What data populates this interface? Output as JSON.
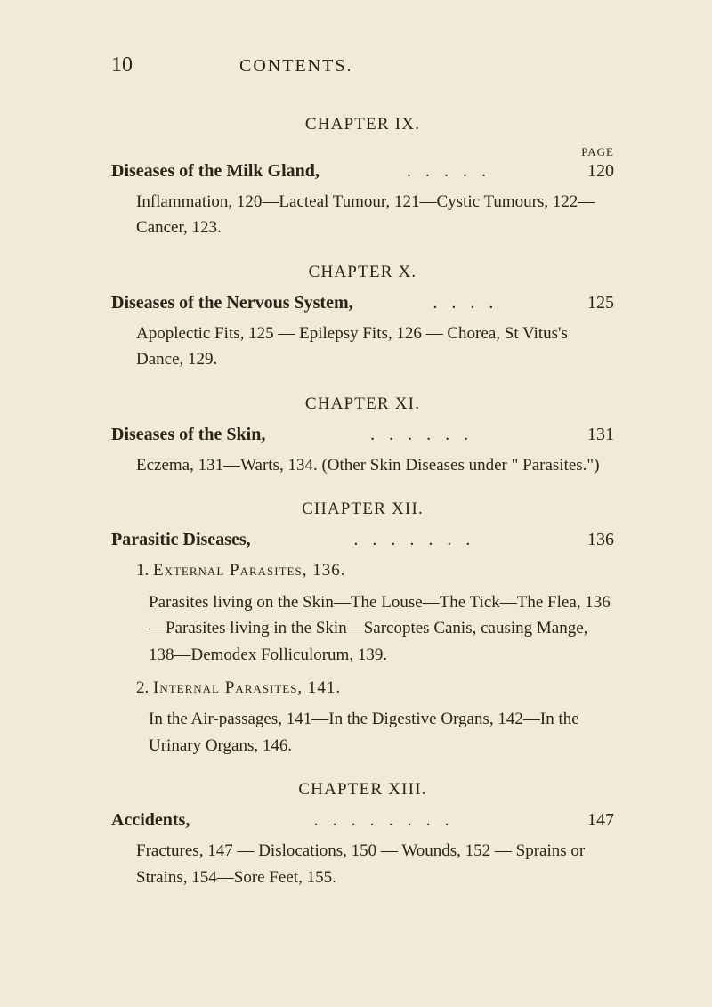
{
  "pageNumber": "10",
  "headerTitle": "CONTENTS.",
  "pageLabel": "PAGE",
  "chapters": {
    "ix": {
      "heading": "CHAPTER IX.",
      "entryTitle": "Diseases of the Milk Gland,",
      "entryPage": "120",
      "description": "Inflammation, 120—Lacteal Tumour, 121—Cystic Tumours, 122—Cancer, 123."
    },
    "x": {
      "heading": "CHAPTER X.",
      "entryTitle": "Diseases of the Nervous System,",
      "entryPage": "125",
      "description": "Apoplectic Fits, 125 — Epilepsy Fits, 126 — Chorea, St Vitus's Dance, 129."
    },
    "xi": {
      "heading": "CHAPTER XI.",
      "entryTitle": "Diseases of the Skin,",
      "entryPage": "131",
      "description": "Eczema, 131—Warts, 134. (Other Skin Diseases under \" Parasites.\")"
    },
    "xii": {
      "heading": "CHAPTER XII.",
      "entryTitle": "Parasitic Diseases,",
      "entryPage": "136",
      "sub1Num": "1.",
      "sub1Title": "External Parasites, 136.",
      "sub1DescA": "Parasites living on the Skin—The Louse—The Tick—The Flea, 136—Parasites living in the Skin—Sarcoptes Canis, causing Mange, 138—Demodex Folliculorum, 139.",
      "sub2Num": "2.",
      "sub2Title": "Internal Parasites, 141.",
      "sub2Desc": "In the Air-passages, 141—In the Digestive Organs, 142—In the Urinary Organs, 146."
    },
    "xiii": {
      "heading": "CHAPTER XIII.",
      "entryTitle": "Accidents,",
      "entryPage": "147",
      "description": "Fractures, 147 — Dislocations, 150 — Wounds, 152 — Sprains or Strains, 154—Sore Feet, 155."
    }
  },
  "styling": {
    "backgroundColor": "#f0ead6",
    "textColor": "#2a2418",
    "bodyFontSize": 19,
    "headingFontSize": 19,
    "pageNumFontSize": 24
  }
}
